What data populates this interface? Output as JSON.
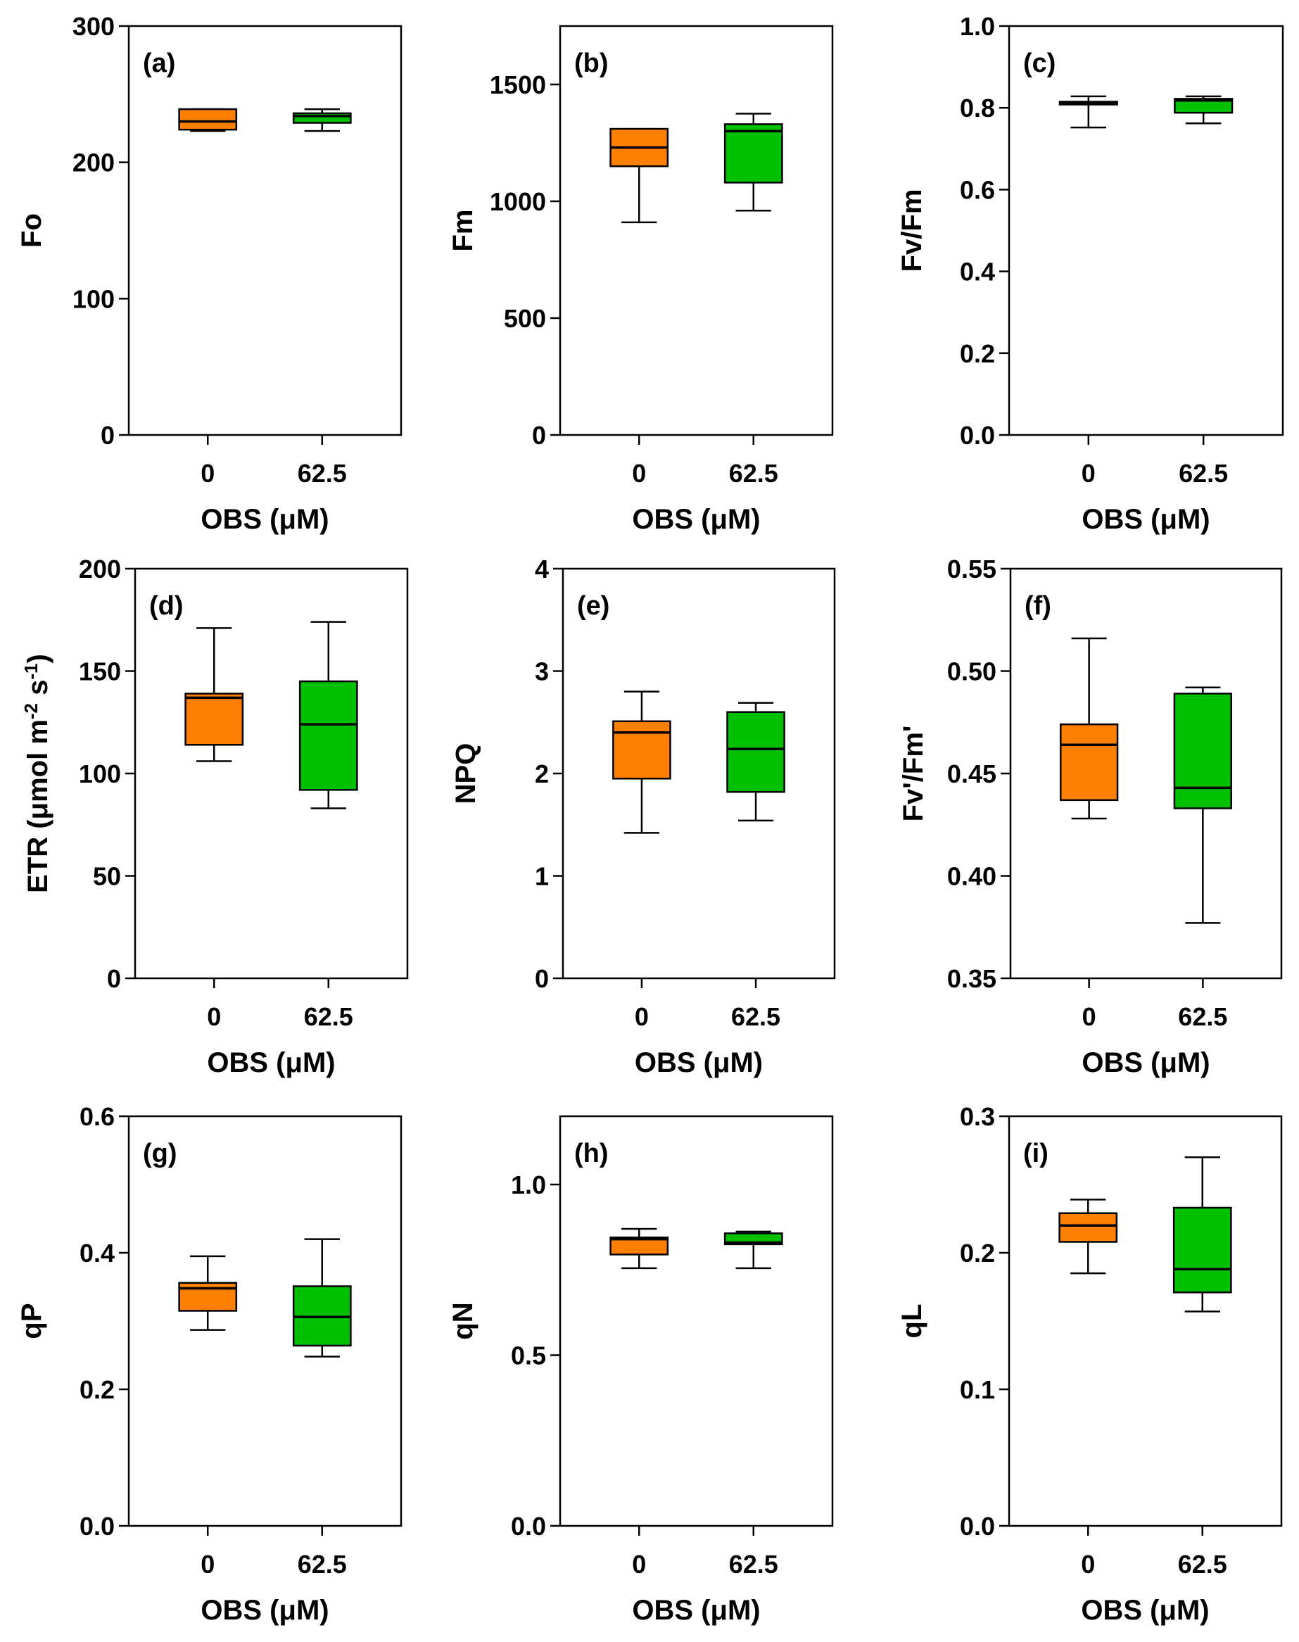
{
  "colors": {
    "control": "#ff8000",
    "treatment": "#00c000"
  },
  "chart_data": [
    {
      "type": "box",
      "label": "(a)",
      "ylabel": "Fo",
      "xlabel": "OBS (μM)",
      "categories": [
        "0",
        "62.5"
      ],
      "ylim": [
        0,
        300
      ],
      "yticks": [
        0,
        100,
        200,
        300
      ],
      "tick_decimals": 0,
      "boxes": [
        {
          "min": 223,
          "q1": 224,
          "median": 230,
          "q3": 239,
          "max": 239
        },
        {
          "min": 223,
          "q1": 229,
          "median": 234,
          "q3": 236,
          "max": 239
        }
      ]
    },
    {
      "type": "box",
      "label": "(b)",
      "ylabel": "Fm",
      "xlabel": "OBS (μM)",
      "categories": [
        "0",
        "62.5"
      ],
      "ylim": [
        0,
        1750
      ],
      "yticks": [
        0,
        500,
        1000,
        1500
      ],
      "tick_decimals": 0,
      "boxes": [
        {
          "min": 910,
          "q1": 1150,
          "median": 1230,
          "q3": 1310,
          "max": 1310
        },
        {
          "min": 960,
          "q1": 1080,
          "median": 1300,
          "q3": 1330,
          "max": 1375
        }
      ]
    },
    {
      "type": "box",
      "label": "(c)",
      "ylabel": "Fv/Fm",
      "xlabel": "OBS (μM)",
      "categories": [
        "0",
        "62.5"
      ],
      "ylim": [
        0,
        1.0
      ],
      "yticks": [
        0.0,
        0.2,
        0.4,
        0.6,
        0.8,
        1.0
      ],
      "tick_decimals": 1,
      "boxes": [
        {
          "min": 0.752,
          "q1": 0.808,
          "median": 0.812,
          "q3": 0.815,
          "max": 0.828
        },
        {
          "min": 0.762,
          "q1": 0.788,
          "median": 0.818,
          "q3": 0.822,
          "max": 0.828
        }
      ]
    },
    {
      "type": "box",
      "label": "(d)",
      "ylabel": "ETR (μmol m-2 s-1)",
      "xlabel": "OBS (μM)",
      "ylabel_parts": {
        "main": "ETR (μmol m",
        "sup1": "-2",
        "mid": " s",
        "sup2": "-1",
        "end": ")"
      },
      "categories": [
        "0",
        "62.5"
      ],
      "ylim": [
        0,
        200
      ],
      "yticks": [
        0,
        50,
        100,
        150,
        200
      ],
      "tick_decimals": 0,
      "boxes": [
        {
          "min": 106,
          "q1": 114,
          "median": 137,
          "q3": 139,
          "max": 171
        },
        {
          "min": 83,
          "q1": 92,
          "median": 124,
          "q3": 145,
          "max": 174
        }
      ]
    },
    {
      "type": "box",
      "label": "(e)",
      "ylabel": "NPQ",
      "xlabel": "OBS (μM)",
      "categories": [
        "0",
        "62.5"
      ],
      "ylim": [
        0,
        4
      ],
      "yticks": [
        0,
        1,
        2,
        3,
        4
      ],
      "tick_decimals": 0,
      "boxes": [
        {
          "min": 1.42,
          "q1": 1.95,
          "median": 2.4,
          "q3": 2.51,
          "max": 2.8
        },
        {
          "min": 1.54,
          "q1": 1.82,
          "median": 2.24,
          "q3": 2.6,
          "max": 2.69
        }
      ]
    },
    {
      "type": "box",
      "label": "(f)",
      "ylabel": "Fv'/Fm'",
      "xlabel": "OBS (μM)",
      "categories": [
        "0",
        "62.5"
      ],
      "ylim": [
        0.35,
        0.55
      ],
      "yticks": [
        0.35,
        0.4,
        0.45,
        0.5,
        0.55
      ],
      "tick_decimals": 2,
      "boxes": [
        {
          "min": 0.428,
          "q1": 0.437,
          "median": 0.464,
          "q3": 0.474,
          "max": 0.516
        },
        {
          "min": 0.377,
          "q1": 0.433,
          "median": 0.443,
          "q3": 0.489,
          "max": 0.492
        }
      ]
    },
    {
      "type": "box",
      "label": "(g)",
      "ylabel": "qP",
      "xlabel": "OBS (μM)",
      "categories": [
        "0",
        "62.5"
      ],
      "ylim": [
        0,
        0.6
      ],
      "yticks": [
        0.0,
        0.2,
        0.4,
        0.6
      ],
      "tick_decimals": 1,
      "boxes": [
        {
          "min": 0.287,
          "q1": 0.315,
          "median": 0.348,
          "q3": 0.356,
          "max": 0.395
        },
        {
          "min": 0.248,
          "q1": 0.264,
          "median": 0.306,
          "q3": 0.351,
          "max": 0.42
        }
      ]
    },
    {
      "type": "box",
      "label": "(h)",
      "ylabel": "qN",
      "xlabel": "OBS (μM)",
      "categories": [
        "0",
        "62.5"
      ],
      "ylim": [
        0,
        1.2
      ],
      "yticks": [
        0.0,
        0.5,
        1.0
      ],
      "tick_decimals": 1,
      "boxes": [
        {
          "min": 0.755,
          "q1": 0.795,
          "median": 0.84,
          "q3": 0.845,
          "max": 0.87
        },
        {
          "min": 0.755,
          "q1": 0.825,
          "median": 0.83,
          "q3": 0.857,
          "max": 0.862
        }
      ]
    },
    {
      "type": "box",
      "label": "(i)",
      "ylabel": "qL",
      "xlabel": "OBS (μM)",
      "categories": [
        "0",
        "62.5"
      ],
      "ylim": [
        0,
        0.3
      ],
      "yticks": [
        0.0,
        0.1,
        0.2,
        0.3
      ],
      "tick_decimals": 1,
      "boxes": [
        {
          "min": 0.185,
          "q1": 0.208,
          "median": 0.22,
          "q3": 0.229,
          "max": 0.239
        },
        {
          "min": 0.157,
          "q1": 0.171,
          "median": 0.188,
          "q3": 0.233,
          "max": 0.27
        }
      ]
    }
  ]
}
